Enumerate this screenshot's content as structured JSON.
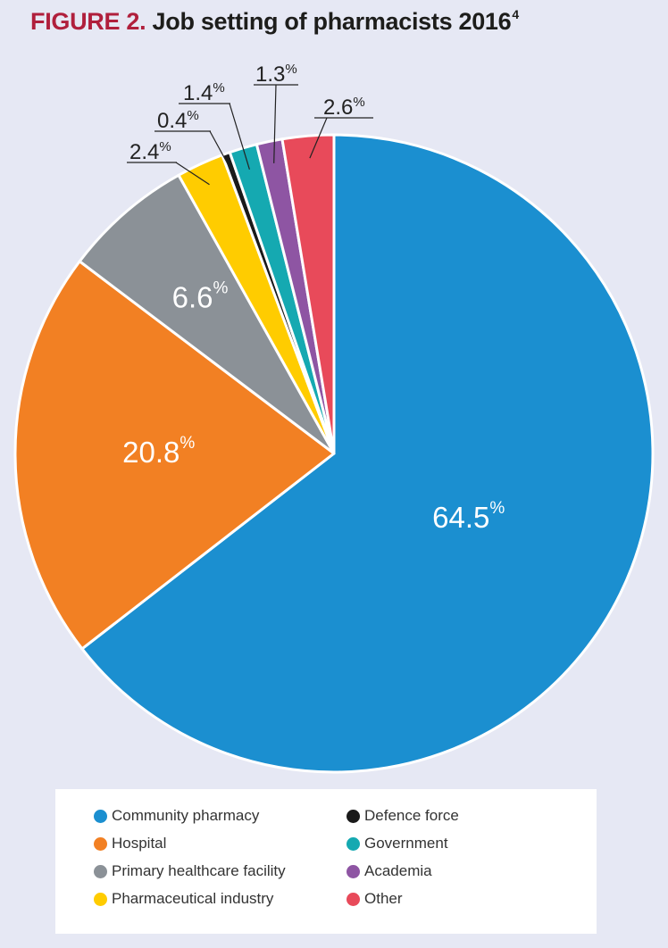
{
  "header": {
    "figure_label": "FIGURE 2.",
    "title": "Job setting of pharmacists 2016",
    "superscript": "4"
  },
  "chart_data": {
    "type": "pie",
    "title": "Job setting of pharmacists 2016",
    "unit": "%",
    "start": "12 o'clock, clockwise",
    "slices": [
      {
        "name": "Community pharmacy",
        "value": 64.5,
        "label": "64.5",
        "color": "#1b8fd0",
        "label_style": "inside"
      },
      {
        "name": "Hospital",
        "value": 20.8,
        "label": "20.8",
        "color": "#f28023",
        "label_style": "inside"
      },
      {
        "name": "Primary healthcare facility",
        "value": 6.6,
        "label": "6.6",
        "color": "#8b9197",
        "label_style": "inside"
      },
      {
        "name": "Pharmaceutical industry",
        "value": 2.4,
        "label": "2.4",
        "color": "#ffcc00",
        "label_style": "callout"
      },
      {
        "name": "Defence force",
        "value": 0.4,
        "label": "0.4",
        "color": "#1a1a1a",
        "label_style": "callout"
      },
      {
        "name": "Government",
        "value": 1.4,
        "label": "1.4",
        "color": "#15a9b1",
        "label_style": "callout"
      },
      {
        "name": "Academia",
        "value": 1.3,
        "label": "1.3",
        "color": "#8e55a3",
        "label_style": "callout"
      },
      {
        "name": "Other",
        "value": 2.6,
        "label": "2.6",
        "color": "#e84a5a",
        "label_style": "callout"
      }
    ],
    "legend_position": "bottom",
    "legend_columns": [
      [
        "Community pharmacy",
        "Hospital",
        "Primary healthcare facility",
        "Pharmaceutical industry"
      ],
      [
        "Defence force",
        "Government",
        "Academia",
        "Other"
      ]
    ]
  }
}
